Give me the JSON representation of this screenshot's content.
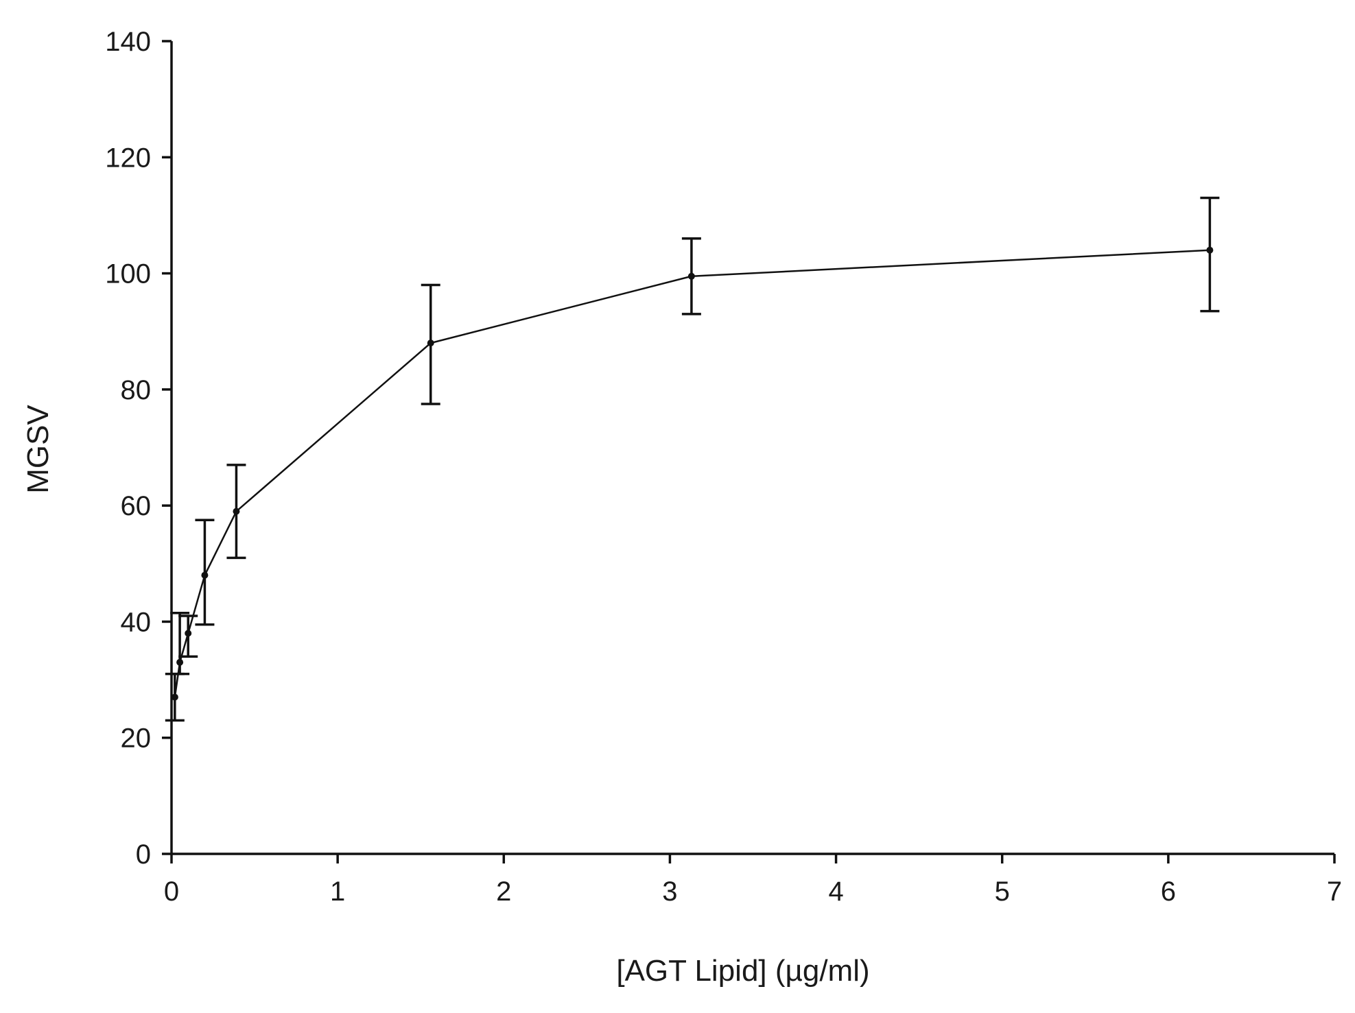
{
  "chart_data": {
    "type": "line",
    "title": "",
    "xlabel": "[AGT Lipid] (µg/ml)",
    "ylabel": "MGSV",
    "xlim": [
      0,
      7
    ],
    "ylim": [
      0,
      140
    ],
    "xticks": [
      "0",
      "1",
      "2",
      "3",
      "4",
      "5",
      "6",
      "7"
    ],
    "yticks": [
      "0",
      "20",
      "40",
      "60",
      "80",
      "100",
      "120",
      "140"
    ],
    "grid": false,
    "legend": "none",
    "series": [
      {
        "x": [
          0.02,
          0.05,
          0.1,
          0.2,
          0.39,
          1.56,
          3.13,
          6.25
        ],
        "y": [
          27,
          33,
          38,
          48,
          59,
          88,
          99.5,
          104
        ],
        "err_low": [
          23,
          31,
          34,
          39.5,
          51,
          77.5,
          93,
          93.5
        ],
        "err_high": [
          31,
          41.5,
          41,
          57.5,
          67,
          98,
          106,
          113
        ],
        "color": "#111111"
      }
    ]
  }
}
